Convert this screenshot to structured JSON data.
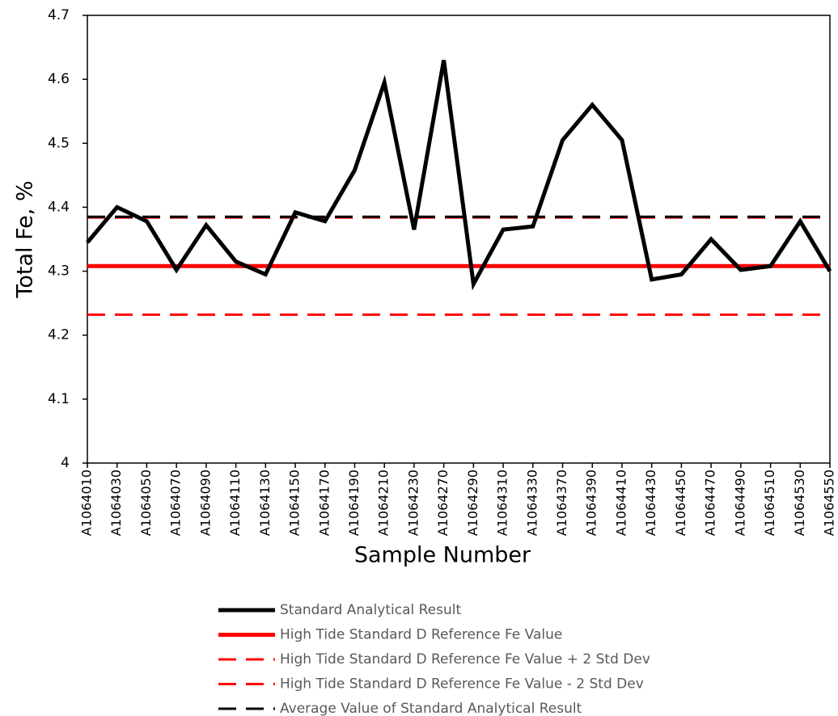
{
  "chart_data": {
    "type": "line",
    "y_label": "Total Fe, %",
    "x_label": "Sample Number",
    "categories": [
      "A1064010",
      "A1064030",
      "A1064050",
      "A1064070",
      "A1064090",
      "A1064110",
      "A1064130",
      "A1064150",
      "A1064170",
      "A1064190",
      "A1064210",
      "A1064230",
      "A1064270",
      "A1064290",
      "A1064310",
      "A1064330",
      "A1064370",
      "A1064390",
      "A1064410",
      "A1064430",
      "A1064450",
      "A1064470",
      "A1064490",
      "A1064510",
      "A1064530",
      "A1064550"
    ],
    "ylim": [
      4,
      4.7
    ],
    "yticks": [
      4,
      4.1,
      4.2,
      4.3,
      4.4,
      4.5,
      4.6,
      4.7
    ],
    "series": [
      {
        "name": "Standard Analytical Result",
        "color": "#000000",
        "dash": false,
        "values": [
          4.345,
          4.4,
          4.378,
          4.302,
          4.372,
          4.315,
          4.295,
          4.392,
          4.378,
          4.458,
          4.595,
          4.365,
          4.63,
          4.28,
          4.365,
          4.37,
          4.505,
          4.56,
          4.505,
          4.287,
          4.295,
          4.35,
          4.302,
          4.308,
          4.378,
          4.3
        ]
      },
      {
        "name": "High Tide Standard D Reference Fe Value",
        "color": "#ff0000",
        "dash": false,
        "values": [
          4.308,
          4.308,
          4.308,
          4.308,
          4.308,
          4.308,
          4.308,
          4.308,
          4.308,
          4.308,
          4.308,
          4.308,
          4.308,
          4.308,
          4.308,
          4.308,
          4.308,
          4.308,
          4.308,
          4.308,
          4.308,
          4.308,
          4.308,
          4.308,
          4.308,
          4.308
        ]
      },
      {
        "name": "High Tide Standard D Reference Fe Value + 2 Std Dev",
        "color": "#ff0000",
        "dash": true,
        "values": [
          4.384,
          4.384,
          4.384,
          4.384,
          4.384,
          4.384,
          4.384,
          4.384,
          4.384,
          4.384,
          4.384,
          4.384,
          4.384,
          4.384,
          4.384,
          4.384,
          4.384,
          4.384,
          4.384,
          4.384,
          4.384,
          4.384,
          4.384,
          4.384,
          4.384,
          4.384
        ]
      },
      {
        "name": "High Tide Standard D Reference Fe Value - 2 Std Dev",
        "color": "#ff0000",
        "dash": true,
        "values": [
          4.232,
          4.232,
          4.232,
          4.232,
          4.232,
          4.232,
          4.232,
          4.232,
          4.232,
          4.232,
          4.232,
          4.232,
          4.232,
          4.232,
          4.232,
          4.232,
          4.232,
          4.232,
          4.232,
          4.232,
          4.232,
          4.232,
          4.232,
          4.232,
          4.232,
          4.232
        ]
      },
      {
        "name": "Average Value of Standard Analytical Result",
        "color": "#000000",
        "dash": true,
        "values": [
          4.385,
          4.385,
          4.385,
          4.385,
          4.385,
          4.385,
          4.385,
          4.385,
          4.385,
          4.385,
          4.385,
          4.385,
          4.385,
          4.385,
          4.385,
          4.385,
          4.385,
          4.385,
          4.385,
          4.385,
          4.385,
          4.385,
          4.385,
          4.385,
          4.385,
          4.385
        ]
      }
    ]
  }
}
